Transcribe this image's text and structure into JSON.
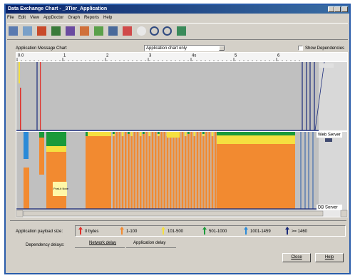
{
  "window": {
    "title": "Data Exchange Chart - _3Tier_Application",
    "menu": [
      "File",
      "Edit",
      "View",
      "AppDoctor",
      "Graph",
      "Reports",
      "Help"
    ]
  },
  "chart_panel": {
    "label": "Application Message Chart",
    "dropdown": "Application chart only",
    "checkbox": "Show Dependencies",
    "ruler": [
      "0.0",
      "1",
      "2",
      "3",
      "4s",
      "5",
      "6"
    ],
    "nodes": [
      "Web Server",
      "DB Server"
    ],
    "note": "Post-it Note"
  },
  "legend": {
    "payload_label": "Application payload size:",
    "items": [
      {
        "label": "0 bytes",
        "color": "#e0302a"
      },
      {
        "label": "1-100",
        "color": "#f28a30"
      },
      {
        "label": "101-500",
        "color": "#f5e040"
      },
      {
        "label": "501-1000",
        "color": "#1a9a3a"
      },
      {
        "label": "1001-1459",
        "color": "#2a8ad8"
      },
      {
        "label": ">= 1460",
        "color": "#1a2a7a"
      }
    ],
    "delay_label": "Dependency delays:",
    "delays": [
      "Network delay",
      "Application delay"
    ]
  },
  "buttons": [
    "Close",
    "Help"
  ]
}
